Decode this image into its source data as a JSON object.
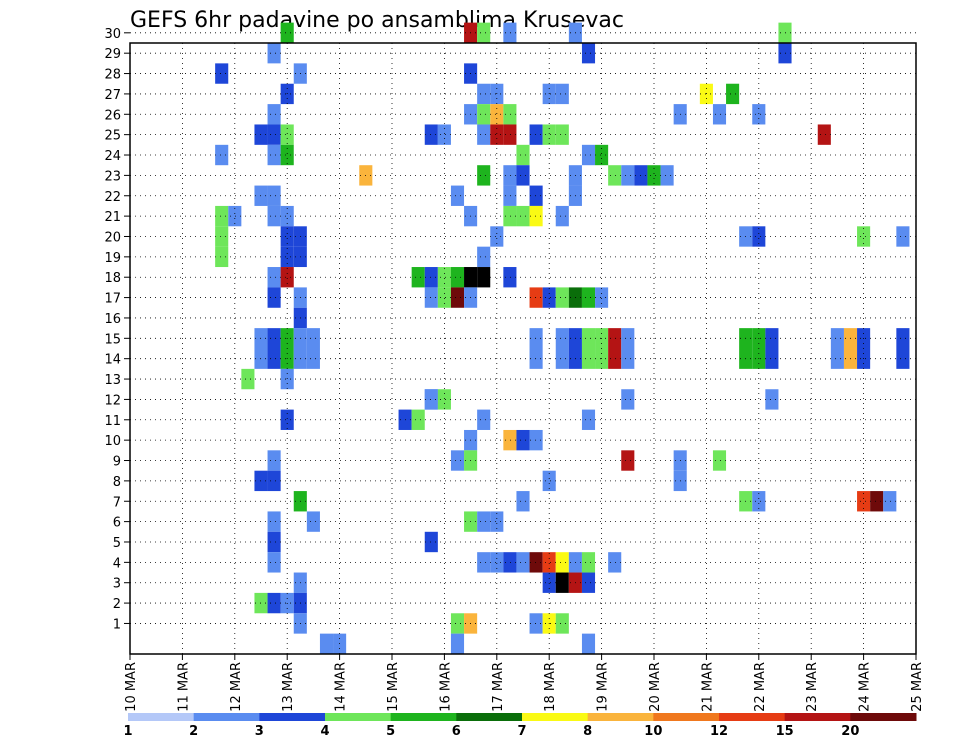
{
  "chart_data": {
    "type": "heatmap",
    "title": "GEFS 6hr padavine po ansamblima Krusevac",
    "x_tick_labels": [
      "10 MAR",
      "11 MAR",
      "12 MAR",
      "13 MAR",
      "14 MAR",
      "15 MAR",
      "16 MAR",
      "17 MAR",
      "18 MAR",
      "19 MAR",
      "20 MAR",
      "21 MAR",
      "22 MAR",
      "23 MAR",
      "24 MAR",
      "25 MAR"
    ],
    "y_tick_labels": [
      "1",
      "2",
      "3",
      "4",
      "5",
      "6",
      "7",
      "8",
      "9",
      "10",
      "11",
      "12",
      "13",
      "14",
      "15",
      "16",
      "17",
      "18",
      "19",
      "20",
      "21",
      "22",
      "23",
      "24",
      "25",
      "26",
      "27",
      "28",
      "29",
      "30"
    ],
    "x_step_hours": 6,
    "grid": true,
    "colorbar": {
      "labels": [
        "1",
        "2",
        "3",
        "4",
        "5",
        "6",
        "7",
        "8",
        "10",
        "12",
        "15",
        "20"
      ],
      "colors": [
        "#b4c8f8",
        "#5a8cf0",
        "#1e46d8",
        "#6ee65a",
        "#1eb41e",
        "#0a6e0a",
        "#fafa14",
        "#fab43c",
        "#f0781e",
        "#e63c14",
        "#b41414",
        "#6e0a0a"
      ]
    },
    "cells": [
      [
        13,
        30,
        4
      ],
      [
        16.5,
        30,
        10
      ],
      [
        16.75,
        30,
        3
      ],
      [
        17.25,
        30,
        1
      ],
      [
        18.5,
        30,
        1
      ],
      [
        22.5,
        30,
        3
      ],
      [
        12.75,
        29,
        1
      ],
      [
        18.75,
        29,
        2
      ],
      [
        22.5,
        29,
        2
      ],
      [
        11.75,
        28,
        2
      ],
      [
        13.25,
        28,
        1
      ],
      [
        16.5,
        28,
        2
      ],
      [
        13,
        27,
        2
      ],
      [
        16.75,
        27,
        1
      ],
      [
        17,
        27,
        1
      ],
      [
        18,
        27,
        1
      ],
      [
        18.25,
        27,
        1
      ],
      [
        21,
        27,
        6
      ],
      [
        21.5,
        27,
        4
      ],
      [
        12.75,
        26,
        1
      ],
      [
        16.5,
        26,
        1
      ],
      [
        16.75,
        26,
        3
      ],
      [
        17,
        26,
        7
      ],
      [
        17.25,
        26,
        3
      ],
      [
        20.5,
        26,
        1
      ],
      [
        21.25,
        26,
        1
      ],
      [
        22,
        26,
        1
      ],
      [
        12.5,
        25,
        2
      ],
      [
        12.75,
        25,
        2
      ],
      [
        13,
        25,
        3
      ],
      [
        15.75,
        25,
        2
      ],
      [
        16,
        25,
        1
      ],
      [
        16.75,
        25,
        1
      ],
      [
        17,
        25,
        10
      ],
      [
        17.25,
        25,
        10
      ],
      [
        17.75,
        25,
        2
      ],
      [
        18,
        25,
        3
      ],
      [
        18.25,
        25,
        3
      ],
      [
        23.25,
        25,
        10
      ],
      [
        11.75,
        24,
        1
      ],
      [
        12.75,
        24,
        1
      ],
      [
        13,
        24,
        4
      ],
      [
        17.5,
        24,
        3
      ],
      [
        18.75,
        24,
        1
      ],
      [
        19,
        24,
        4
      ],
      [
        14.5,
        23,
        7
      ],
      [
        16.75,
        23,
        4
      ],
      [
        17.25,
        23,
        1
      ],
      [
        17.5,
        23,
        2
      ],
      [
        18.5,
        23,
        1
      ],
      [
        19.25,
        23,
        3
      ],
      [
        19.5,
        23,
        1
      ],
      [
        19.75,
        23,
        2
      ],
      [
        20,
        23,
        4
      ],
      [
        20.25,
        23,
        1
      ],
      [
        12.5,
        22,
        1
      ],
      [
        12.75,
        22,
        1
      ],
      [
        16.25,
        22,
        1
      ],
      [
        17.25,
        22,
        1
      ],
      [
        17.75,
        22,
        2
      ],
      [
        18.5,
        22,
        1
      ],
      [
        11.75,
        21,
        3
      ],
      [
        12,
        21,
        1
      ],
      [
        12.75,
        21,
        1
      ],
      [
        13,
        21,
        1
      ],
      [
        16.5,
        21,
        1
      ],
      [
        17.25,
        21,
        3
      ],
      [
        17.5,
        21,
        3
      ],
      [
        17.75,
        21,
        6
      ],
      [
        18.25,
        21,
        1
      ],
      [
        11.75,
        20,
        3
      ],
      [
        13,
        20,
        2
      ],
      [
        13.25,
        20,
        2
      ],
      [
        17,
        20,
        1
      ],
      [
        21.75,
        20,
        1
      ],
      [
        22,
        20,
        2
      ],
      [
        24,
        20,
        3
      ],
      [
        24.75,
        20,
        1
      ],
      [
        11.75,
        19,
        3
      ],
      [
        13,
        19,
        2
      ],
      [
        13.25,
        19,
        2
      ],
      [
        16.75,
        19,
        1
      ],
      [
        12.75,
        18,
        1
      ],
      [
        13,
        18,
        10
      ],
      [
        15.5,
        18,
        4
      ],
      [
        15.75,
        18,
        2
      ],
      [
        16,
        18,
        3
      ],
      [
        16.25,
        18,
        4
      ],
      [
        16.5,
        18,
        12
      ],
      [
        16.75,
        18,
        12
      ],
      [
        17.25,
        18,
        2
      ],
      [
        12.75,
        17,
        2
      ],
      [
        13.25,
        17,
        1
      ],
      [
        15.75,
        17,
        1
      ],
      [
        16,
        17,
        3
      ],
      [
        16.25,
        17,
        11
      ],
      [
        16.5,
        17,
        1
      ],
      [
        17.75,
        17,
        9
      ],
      [
        18,
        17,
        2
      ],
      [
        18.25,
        17,
        3
      ],
      [
        18.5,
        17,
        5
      ],
      [
        18.75,
        17,
        4
      ],
      [
        19,
        17,
        1
      ],
      [
        13.25,
        16,
        2
      ],
      [
        12.5,
        15,
        1
      ],
      [
        12.75,
        15,
        2
      ],
      [
        13,
        15,
        4
      ],
      [
        13.25,
        15,
        1
      ],
      [
        13.5,
        15,
        1
      ],
      [
        17.75,
        15,
        1
      ],
      [
        18.25,
        15,
        1
      ],
      [
        18.5,
        15,
        2
      ],
      [
        18.75,
        15,
        3
      ],
      [
        19,
        15,
        3
      ],
      [
        19.25,
        15,
        10
      ],
      [
        19.5,
        15,
        1
      ],
      [
        21.75,
        15,
        4
      ],
      [
        22,
        15,
        4
      ],
      [
        22.25,
        15,
        2
      ],
      [
        23.5,
        15,
        1
      ],
      [
        23.75,
        15,
        7
      ],
      [
        24,
        15,
        2
      ],
      [
        24.75,
        15,
        2
      ],
      [
        12.5,
        14,
        1
      ],
      [
        12.75,
        14,
        2
      ],
      [
        13,
        14,
        4
      ],
      [
        13.25,
        14,
        1
      ],
      [
        13.5,
        14,
        1
      ],
      [
        17.75,
        14,
        1
      ],
      [
        18.25,
        14,
        1
      ],
      [
        18.5,
        14,
        2
      ],
      [
        18.75,
        14,
        3
      ],
      [
        19,
        14,
        3
      ],
      [
        19.25,
        14,
        10
      ],
      [
        19.5,
        14,
        1
      ],
      [
        21.75,
        14,
        4
      ],
      [
        22,
        14,
        4
      ],
      [
        22.25,
        14,
        2
      ],
      [
        23.5,
        14,
        1
      ],
      [
        23.75,
        14,
        7
      ],
      [
        24,
        14,
        2
      ],
      [
        24.75,
        14,
        2
      ],
      [
        12.25,
        13,
        3
      ],
      [
        13,
        13,
        1
      ],
      [
        15.75,
        12,
        1
      ],
      [
        15.75,
        12,
        1
      ],
      [
        16,
        12,
        3
      ],
      [
        19.5,
        12,
        1
      ],
      [
        22.25,
        12,
        1
      ],
      [
        13,
        11,
        2
      ],
      [
        15.25,
        11,
        2
      ],
      [
        15.5,
        11,
        3
      ],
      [
        16.75,
        11,
        1
      ],
      [
        18.75,
        11,
        1
      ],
      [
        16.5,
        10,
        1
      ],
      [
        17.25,
        10,
        7
      ],
      [
        17.5,
        10,
        2
      ],
      [
        17.75,
        10,
        1
      ],
      [
        12.75,
        9,
        1
      ],
      [
        16.25,
        9,
        1
      ],
      [
        16.5,
        9,
        3
      ],
      [
        19.5,
        9,
        10
      ],
      [
        20.5,
        9,
        1
      ],
      [
        21.25,
        9,
        3
      ],
      [
        12.5,
        8,
        2
      ],
      [
        12.75,
        8,
        2
      ],
      [
        18,
        8,
        1
      ],
      [
        20.5,
        8,
        1
      ],
      [
        13.25,
        7,
        4
      ],
      [
        17.5,
        7,
        1
      ],
      [
        21.75,
        7,
        3
      ],
      [
        22,
        7,
        1
      ],
      [
        24,
        7,
        9
      ],
      [
        24.25,
        7,
        11
      ],
      [
        24.5,
        7,
        1
      ],
      [
        12.75,
        6,
        1
      ],
      [
        13.5,
        6,
        1
      ],
      [
        16.5,
        6,
        3
      ],
      [
        16.75,
        6,
        1
      ],
      [
        17,
        6,
        1
      ],
      [
        12.75,
        5,
        2
      ],
      [
        15.75,
        5,
        2
      ],
      [
        12.75,
        4,
        1
      ],
      [
        16.75,
        4,
        1
      ],
      [
        17,
        4,
        1
      ],
      [
        17.25,
        4,
        2
      ],
      [
        17.5,
        4,
        1
      ],
      [
        17.75,
        4,
        11
      ],
      [
        18,
        4,
        9
      ],
      [
        18.25,
        4,
        6
      ],
      [
        18.5,
        4,
        1
      ],
      [
        18.75,
        4,
        3
      ],
      [
        19.25,
        4,
        1
      ],
      [
        13.25,
        3,
        1
      ],
      [
        18,
        3,
        2
      ],
      [
        18.25,
        3,
        12
      ],
      [
        18.5,
        3,
        10
      ],
      [
        18.75,
        3,
        2
      ],
      [
        12.5,
        2,
        3
      ],
      [
        12.75,
        2,
        2
      ],
      [
        13,
        2,
        1
      ],
      [
        13.25,
        2,
        2
      ],
      [
        13.25,
        1,
        1
      ],
      [
        16.25,
        1,
        3
      ],
      [
        16.5,
        1,
        7
      ],
      [
        17.75,
        1,
        1
      ],
      [
        18,
        1,
        6
      ],
      [
        18.25,
        1,
        3
      ],
      [
        13.75,
        0,
        1
      ],
      [
        14,
        0,
        1
      ],
      [
        16.25,
        0,
        1
      ],
      [
        18.75,
        0,
        1
      ]
    ]
  }
}
